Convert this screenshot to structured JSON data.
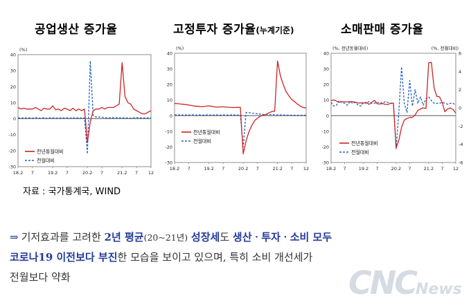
{
  "chart_data": [
    {
      "type": "line",
      "title": "공업생산 증가율",
      "title_suffix": "",
      "unit_left": "(%)",
      "unit_right": "",
      "ylim": [
        -30,
        40
      ],
      "yticks": [
        -30,
        -20,
        -10,
        0,
        10,
        20,
        30,
        40
      ],
      "xtick_labels": [
        "18.2",
        "7",
        "19.2",
        "7",
        "20.2",
        "7",
        "21.2",
        "7",
        "12"
      ],
      "xtick_index": [
        0,
        5,
        12,
        17,
        24,
        29,
        36,
        41,
        46
      ],
      "grid": false,
      "legend_position": "bottom-left",
      "series": [
        {
          "name": "전년동월대비",
          "color": "#cc2222",
          "style": "solid",
          "axis": "left",
          "values": [
            7,
            6,
            6.5,
            6,
            6,
            6,
            7,
            6,
            5,
            6.5,
            6,
            6,
            8,
            5.5,
            6,
            5,
            6.5,
            6,
            5,
            6.5,
            5,
            6,
            5,
            6,
            -15,
            -2,
            5,
            6,
            6,
            7,
            6,
            7,
            7,
            7,
            8,
            9,
            35,
            14,
            10,
            9,
            6,
            5,
            4,
            3,
            3,
            4,
            5
          ]
        },
        {
          "name": "전월대비",
          "color": "#2060c0",
          "style": "dashed",
          "axis": "left",
          "values": [
            0.5,
            0.3,
            0.5,
            0.4,
            0.5,
            0.3,
            0.6,
            0.4,
            0.3,
            0.6,
            0.2,
            0.5,
            0.5,
            0.4,
            0.3,
            0.6,
            0.4,
            0.5,
            0.3,
            0.6,
            0.3,
            0.5,
            0.4,
            0.5,
            -22,
            36,
            2,
            1,
            1,
            1,
            0.5,
            0.5,
            0.5,
            0.6,
            0.6,
            0.5,
            0.5,
            0.5,
            0.4,
            0.3,
            0.5,
            0.6,
            0.5,
            0.5,
            0.4,
            0.5,
            0.5
          ]
        }
      ]
    },
    {
      "type": "line",
      "title": "고정투자 증가율",
      "title_suffix": "(누계기준)",
      "unit_left": "(%)",
      "unit_right": "",
      "ylim": [
        -30,
        40
      ],
      "yticks": [
        -30,
        -20,
        -10,
        0,
        10,
        20,
        30,
        40
      ],
      "xtick_labels": [
        "18.2",
        "7",
        "19.2",
        "7",
        "20.2",
        "7",
        "21.2",
        "7",
        "12"
      ],
      "xtick_index": [
        0,
        5,
        12,
        17,
        24,
        29,
        36,
        41,
        46
      ],
      "grid": false,
      "legend_position": "bottom-left",
      "series": [
        {
          "name": "전년동월대비",
          "color": "#cc2222",
          "style": "solid",
          "axis": "left",
          "values": [
            7.9,
            7.7,
            7.5,
            7.3,
            7.1,
            6.8,
            6.5,
            6.2,
            6.0,
            5.8,
            5.7,
            6.1,
            6.3,
            6.0,
            5.6,
            5.5,
            5.6,
            5.7,
            5.5,
            5.4,
            5.2,
            5.2,
            5.3,
            5.4,
            -24.5,
            -16.1,
            -10.3,
            -6.3,
            -3.1,
            -1.6,
            -0.3,
            0.5,
            0.8,
            1.8,
            2.6,
            2.9,
            35.0,
            25.6,
            19.9,
            15.4,
            12.6,
            10.3,
            8.9,
            7.3,
            6.1,
            5.2,
            4.9
          ]
        },
        {
          "name": "전월대비",
          "color": "#2060c0",
          "style": "dashed",
          "axis": "left",
          "values": [
            0.5,
            0.6,
            0.5,
            0.4,
            0.5,
            0.4,
            0.5,
            0.5,
            0.4,
            0.5,
            0.4,
            0.5,
            0.5,
            0.4,
            0.5,
            0.5,
            0.4,
            0.5,
            0.5,
            0.4,
            0.5,
            0.5,
            0.4,
            0.5,
            -20,
            2,
            2,
            1.5,
            1.5,
            1.2,
            1,
            0.8,
            0.8,
            0.7,
            0.6,
            0.6,
            0.5,
            0.5,
            0.4,
            0.4,
            0.4,
            0.3,
            0.3,
            0.3,
            0.3,
            0.3,
            0.3
          ]
        }
      ]
    },
    {
      "type": "line",
      "title": "소매판매 증가율",
      "title_suffix": "",
      "unit_left": "(%, 전년동월대비)",
      "unit_right": "(%, 전월대비)",
      "ylim": [
        -30,
        40
      ],
      "yticks": [
        -30,
        -20,
        -10,
        0,
        10,
        20,
        30,
        40
      ],
      "ylim_right": [
        -6,
        6
      ],
      "yticks_right": [
        -6,
        -4,
        -2,
        0,
        2,
        4,
        6
      ],
      "xtick_labels": [
        "18.2",
        "7",
        "19.2",
        "7",
        "20.2",
        "7",
        "21.2",
        "7",
        "12"
      ],
      "xtick_index": [
        0,
        5,
        12,
        17,
        24,
        29,
        36,
        41,
        46
      ],
      "grid": false,
      "legend_position": "bottom-right",
      "series": [
        {
          "name": "전년동월대비",
          "color": "#cc2222",
          "style": "solid",
          "axis": "left",
          "values": [
            9.7,
            10.1,
            9.4,
            8.5,
            9.0,
            8.8,
            8.8,
            9.0,
            9.0,
            8.6,
            8.1,
            8.2,
            8.2,
            8.5,
            7.2,
            8.6,
            9.8,
            7.6,
            7.5,
            7.8,
            7.2,
            7.2,
            8.0,
            8.0,
            -20.5,
            -15.8,
            -7.5,
            -2.8,
            -1.8,
            -1.1,
            -1.1,
            0.5,
            3.3,
            4.3,
            5.0,
            4.6,
            33.8,
            34.2,
            17.7,
            12.4,
            12.1,
            8.5,
            2.5,
            4.4,
            4.9,
            3.9,
            1.7
          ]
        },
        {
          "name": "전월대비",
          "color": "#2060c0",
          "style": "dashed",
          "axis": "right",
          "values": [
            0.6,
            0.2,
            0.3,
            0.8,
            0.6,
            0.5,
            0.3,
            0.7,
            0.5,
            0.6,
            0.3,
            0.2,
            0.6,
            0.5,
            0.7,
            0.5,
            0.5,
            0.6,
            0.6,
            0.5,
            0.7,
            0.6,
            0.5,
            0.4,
            -4.5,
            -0.5,
            4.5,
            0.5,
            -0.5,
            3,
            0.2,
            2.0,
            0.5,
            1.2,
            0.3,
            1.0,
            1.2,
            0.8,
            0.5,
            0.5,
            0.5,
            0.6,
            0.5,
            0.4,
            0.5,
            0.5,
            0.3
          ]
        }
      ]
    }
  ],
  "source": "자료 : 국가통계국, WIND",
  "paragraph": {
    "arrow": "⇒",
    "t1": "기저효과를 고려한 ",
    "t2": "2년 평균",
    "t3": "(20~21년)",
    "t4": " ",
    "t5": "성장세",
    "t6": "도 ",
    "t7": "생산ㆍ투자ㆍ소비 모두",
    "t8": "코로나19 이전보다 부진",
    "t9": "한 모습을 보이고 있으며, 특히 소비 개선세가",
    "t10": "전월보다 약화"
  },
  "watermark": {
    "brand": "CNC",
    "suffix": "News"
  }
}
